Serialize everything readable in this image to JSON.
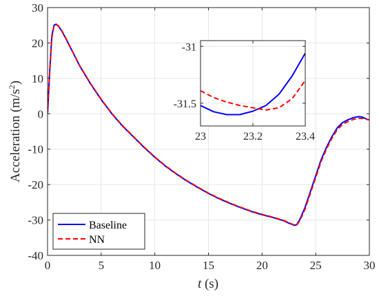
{
  "chart_data": [
    {
      "type": "line",
      "title": "",
      "xlabel_main": "t",
      "xlabel_unit": "(s)",
      "ylabel": "Acceleration (m/s",
      "ylabel_sup": "2",
      "ylabel_close": ")",
      "xlim": [
        0,
        30
      ],
      "ylim": [
        -40,
        30
      ],
      "xticks": [
        0,
        5,
        10,
        15,
        20,
        25,
        30
      ],
      "yticks": [
        -40,
        -30,
        -20,
        -10,
        0,
        10,
        20,
        30
      ],
      "grid": true,
      "legend_position": "bottom-left",
      "series": [
        {
          "name": "Baseline",
          "color": "#0000ff",
          "style": "solid",
          "x": [
            0,
            0.2,
            0.4,
            0.6,
            0.8,
            1.0,
            1.3,
            1.7,
            2,
            3,
            4,
            5,
            6,
            7,
            8,
            9,
            10,
            11,
            12,
            13,
            14,
            15,
            16,
            17,
            18,
            19,
            20,
            21,
            22,
            22.5,
            23,
            23.2,
            23.5,
            24,
            24.5,
            25,
            25.5,
            26,
            26.5,
            27,
            27.5,
            28,
            28.5,
            29,
            29.3,
            29.6,
            29.8,
            30
          ],
          "y": [
            0,
            12,
            22,
            25,
            25.3,
            24.8,
            23.5,
            21.3,
            19.5,
            13.5,
            8.5,
            4,
            0,
            -3.5,
            -6.5,
            -9.5,
            -12.3,
            -14.8,
            -17,
            -19,
            -20.8,
            -22.5,
            -24,
            -25.3,
            -26.5,
            -27.6,
            -28.5,
            -29.3,
            -30.2,
            -30.9,
            -31.5,
            -31.4,
            -30,
            -26.5,
            -22,
            -17.5,
            -13,
            -9.5,
            -6.5,
            -4,
            -2.5,
            -1.7,
            -1.1,
            -0.8,
            -0.9,
            -1.3,
            -1.6,
            -1.7
          ]
        },
        {
          "name": "NN",
          "color": "#ff0000",
          "style": "dashed",
          "x": [
            0,
            0.2,
            0.4,
            0.6,
            0.8,
            1.0,
            1.3,
            1.7,
            2,
            3,
            4,
            5,
            6,
            7,
            8,
            9,
            10,
            11,
            12,
            13,
            14,
            15,
            16,
            17,
            18,
            19,
            20,
            21,
            22,
            22.5,
            23,
            23.2,
            23.5,
            24,
            24.5,
            25,
            25.5,
            26,
            26.5,
            27,
            27.5,
            28,
            28.5,
            29,
            29.3,
            29.6,
            29.8,
            30
          ],
          "y": [
            0,
            11.5,
            21.5,
            24.8,
            25.2,
            24.9,
            23.6,
            21.4,
            19.6,
            13.6,
            8.6,
            4.1,
            0.1,
            -3.4,
            -6.4,
            -9.4,
            -12.2,
            -14.7,
            -16.9,
            -18.9,
            -20.7,
            -22.4,
            -23.9,
            -25.2,
            -26.4,
            -27.5,
            -28.4,
            -29.2,
            -30.1,
            -30.8,
            -31.4,
            -31.55,
            -30.3,
            -27,
            -22.5,
            -18,
            -13.5,
            -10,
            -7,
            -4.5,
            -3,
            -2.2,
            -1.6,
            -1.3,
            -1.3,
            -1.5,
            -1.6,
            -1.7
          ]
        }
      ]
    },
    {
      "type": "line",
      "title": "",
      "xlim": [
        23,
        23.4
      ],
      "ylim": [
        -31.7,
        -30.95
      ],
      "xticks": [
        23,
        23.2,
        23.4
      ],
      "xtick_labels": [
        "23",
        "23.2",
        "23.4"
      ],
      "yticks": [
        -31.5,
        -31
      ],
      "ytick_labels": [
        "-31.5",
        "-31"
      ],
      "grid": true,
      "series": [
        {
          "name": "Baseline",
          "color": "#0000ff",
          "style": "solid",
          "x": [
            23.0,
            23.05,
            23.1,
            23.15,
            23.2,
            23.25,
            23.3,
            23.35,
            23.4
          ],
          "y": [
            -31.52,
            -31.575,
            -31.6,
            -31.6,
            -31.57,
            -31.52,
            -31.42,
            -31.26,
            -31.06
          ]
        },
        {
          "name": "NN",
          "color": "#ff0000",
          "style": "dashed",
          "x": [
            23.0,
            23.05,
            23.1,
            23.15,
            23.2,
            23.25,
            23.3,
            23.35,
            23.4
          ],
          "y": [
            -31.39,
            -31.45,
            -31.49,
            -31.52,
            -31.54,
            -31.56,
            -31.54,
            -31.46,
            -31.3
          ]
        }
      ]
    }
  ]
}
